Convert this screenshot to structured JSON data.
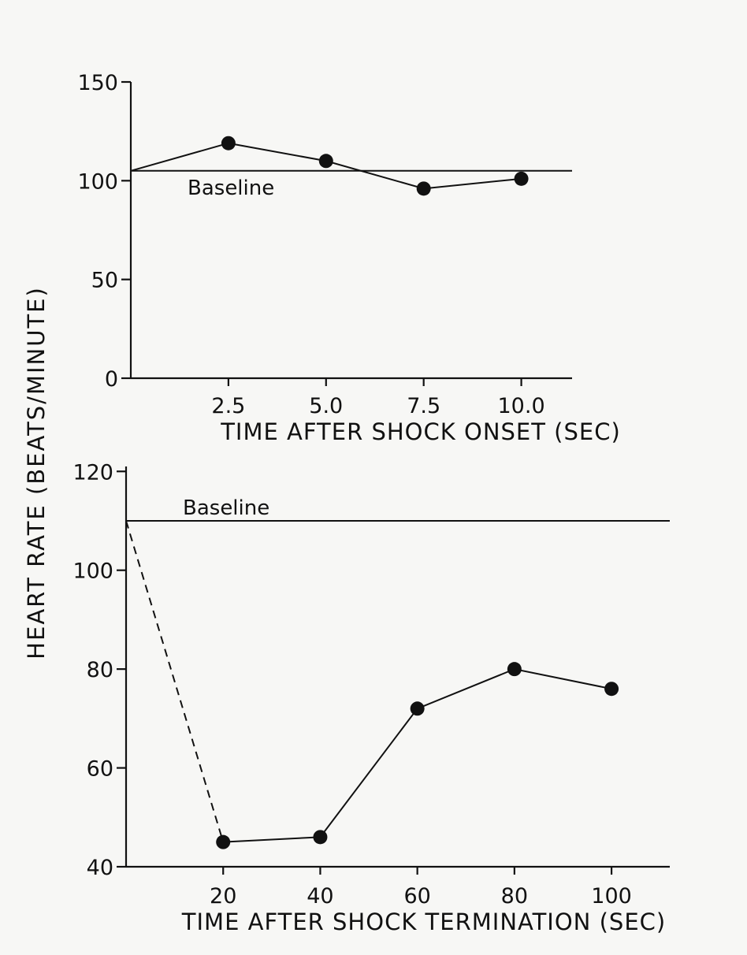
{
  "y_axis_label": "HEART RATE (BEATS/MINUTE)",
  "chart_data": [
    {
      "type": "line",
      "xlabel": "TIME AFTER SHOCK ONSET (SEC)",
      "ylabel": "HEART RATE (BEATS/MINUTE)",
      "xlim": [
        0,
        11.3
      ],
      "ylim": [
        0,
        150
      ],
      "x_ticks": [
        2.5,
        5.0,
        7.5,
        10.0
      ],
      "x_tick_labels": [
        "2.5",
        "5.0",
        "7.5",
        "10.0"
      ],
      "y_ticks": [
        0,
        50,
        100,
        150
      ],
      "y_tick_labels": [
        "0",
        "50",
        "100",
        "150"
      ],
      "baseline": {
        "label": "Baseline",
        "value": 105
      },
      "start_point": [
        0,
        105
      ],
      "x": [
        2.5,
        5.0,
        7.5,
        10.0
      ],
      "values": [
        119,
        110,
        96,
        101
      ],
      "connector": "solid",
      "grid": false
    },
    {
      "type": "line",
      "xlabel": "TIME AFTER SHOCK TERMINATION (SEC)",
      "ylabel": "HEART RATE (BEATS/MINUTE)",
      "xlim": [
        0,
        112
      ],
      "ylim": [
        40,
        121
      ],
      "x_ticks": [
        20,
        40,
        60,
        80,
        100
      ],
      "x_tick_labels": [
        "20",
        "40",
        "60",
        "80",
        "100"
      ],
      "y_ticks": [
        40,
        60,
        80,
        100,
        120
      ],
      "y_tick_labels": [
        "40",
        "60",
        "80",
        "100",
        "120"
      ],
      "baseline": {
        "label": "Baseline",
        "value": 110
      },
      "start_point": [
        0,
        110
      ],
      "x": [
        20,
        40,
        60,
        80,
        100
      ],
      "values": [
        45,
        46,
        72,
        80,
        76
      ],
      "connector": "dashed",
      "grid": false
    }
  ]
}
